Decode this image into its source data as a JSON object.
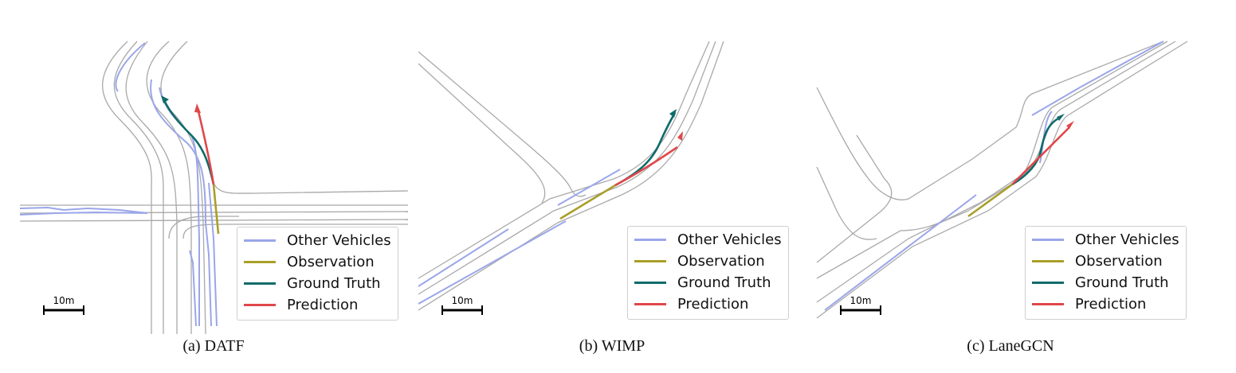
{
  "colors": {
    "lane": "#a9a9a9",
    "other_vehicles": "#9aa6ea",
    "observation": "#a99f2a",
    "ground_truth": "#0f6b6b",
    "prediction": "#e0474a"
  },
  "legend": {
    "other_vehicles": "Other Vehicles",
    "observation": "Observation",
    "ground_truth": "Ground Truth",
    "prediction": "Prediction"
  },
  "scale_label": "10m",
  "panels": [
    {
      "caption": "(a)  DATF"
    },
    {
      "caption": "(b)  WIMP"
    },
    {
      "caption": "(c)  LaneGCN"
    }
  ]
}
